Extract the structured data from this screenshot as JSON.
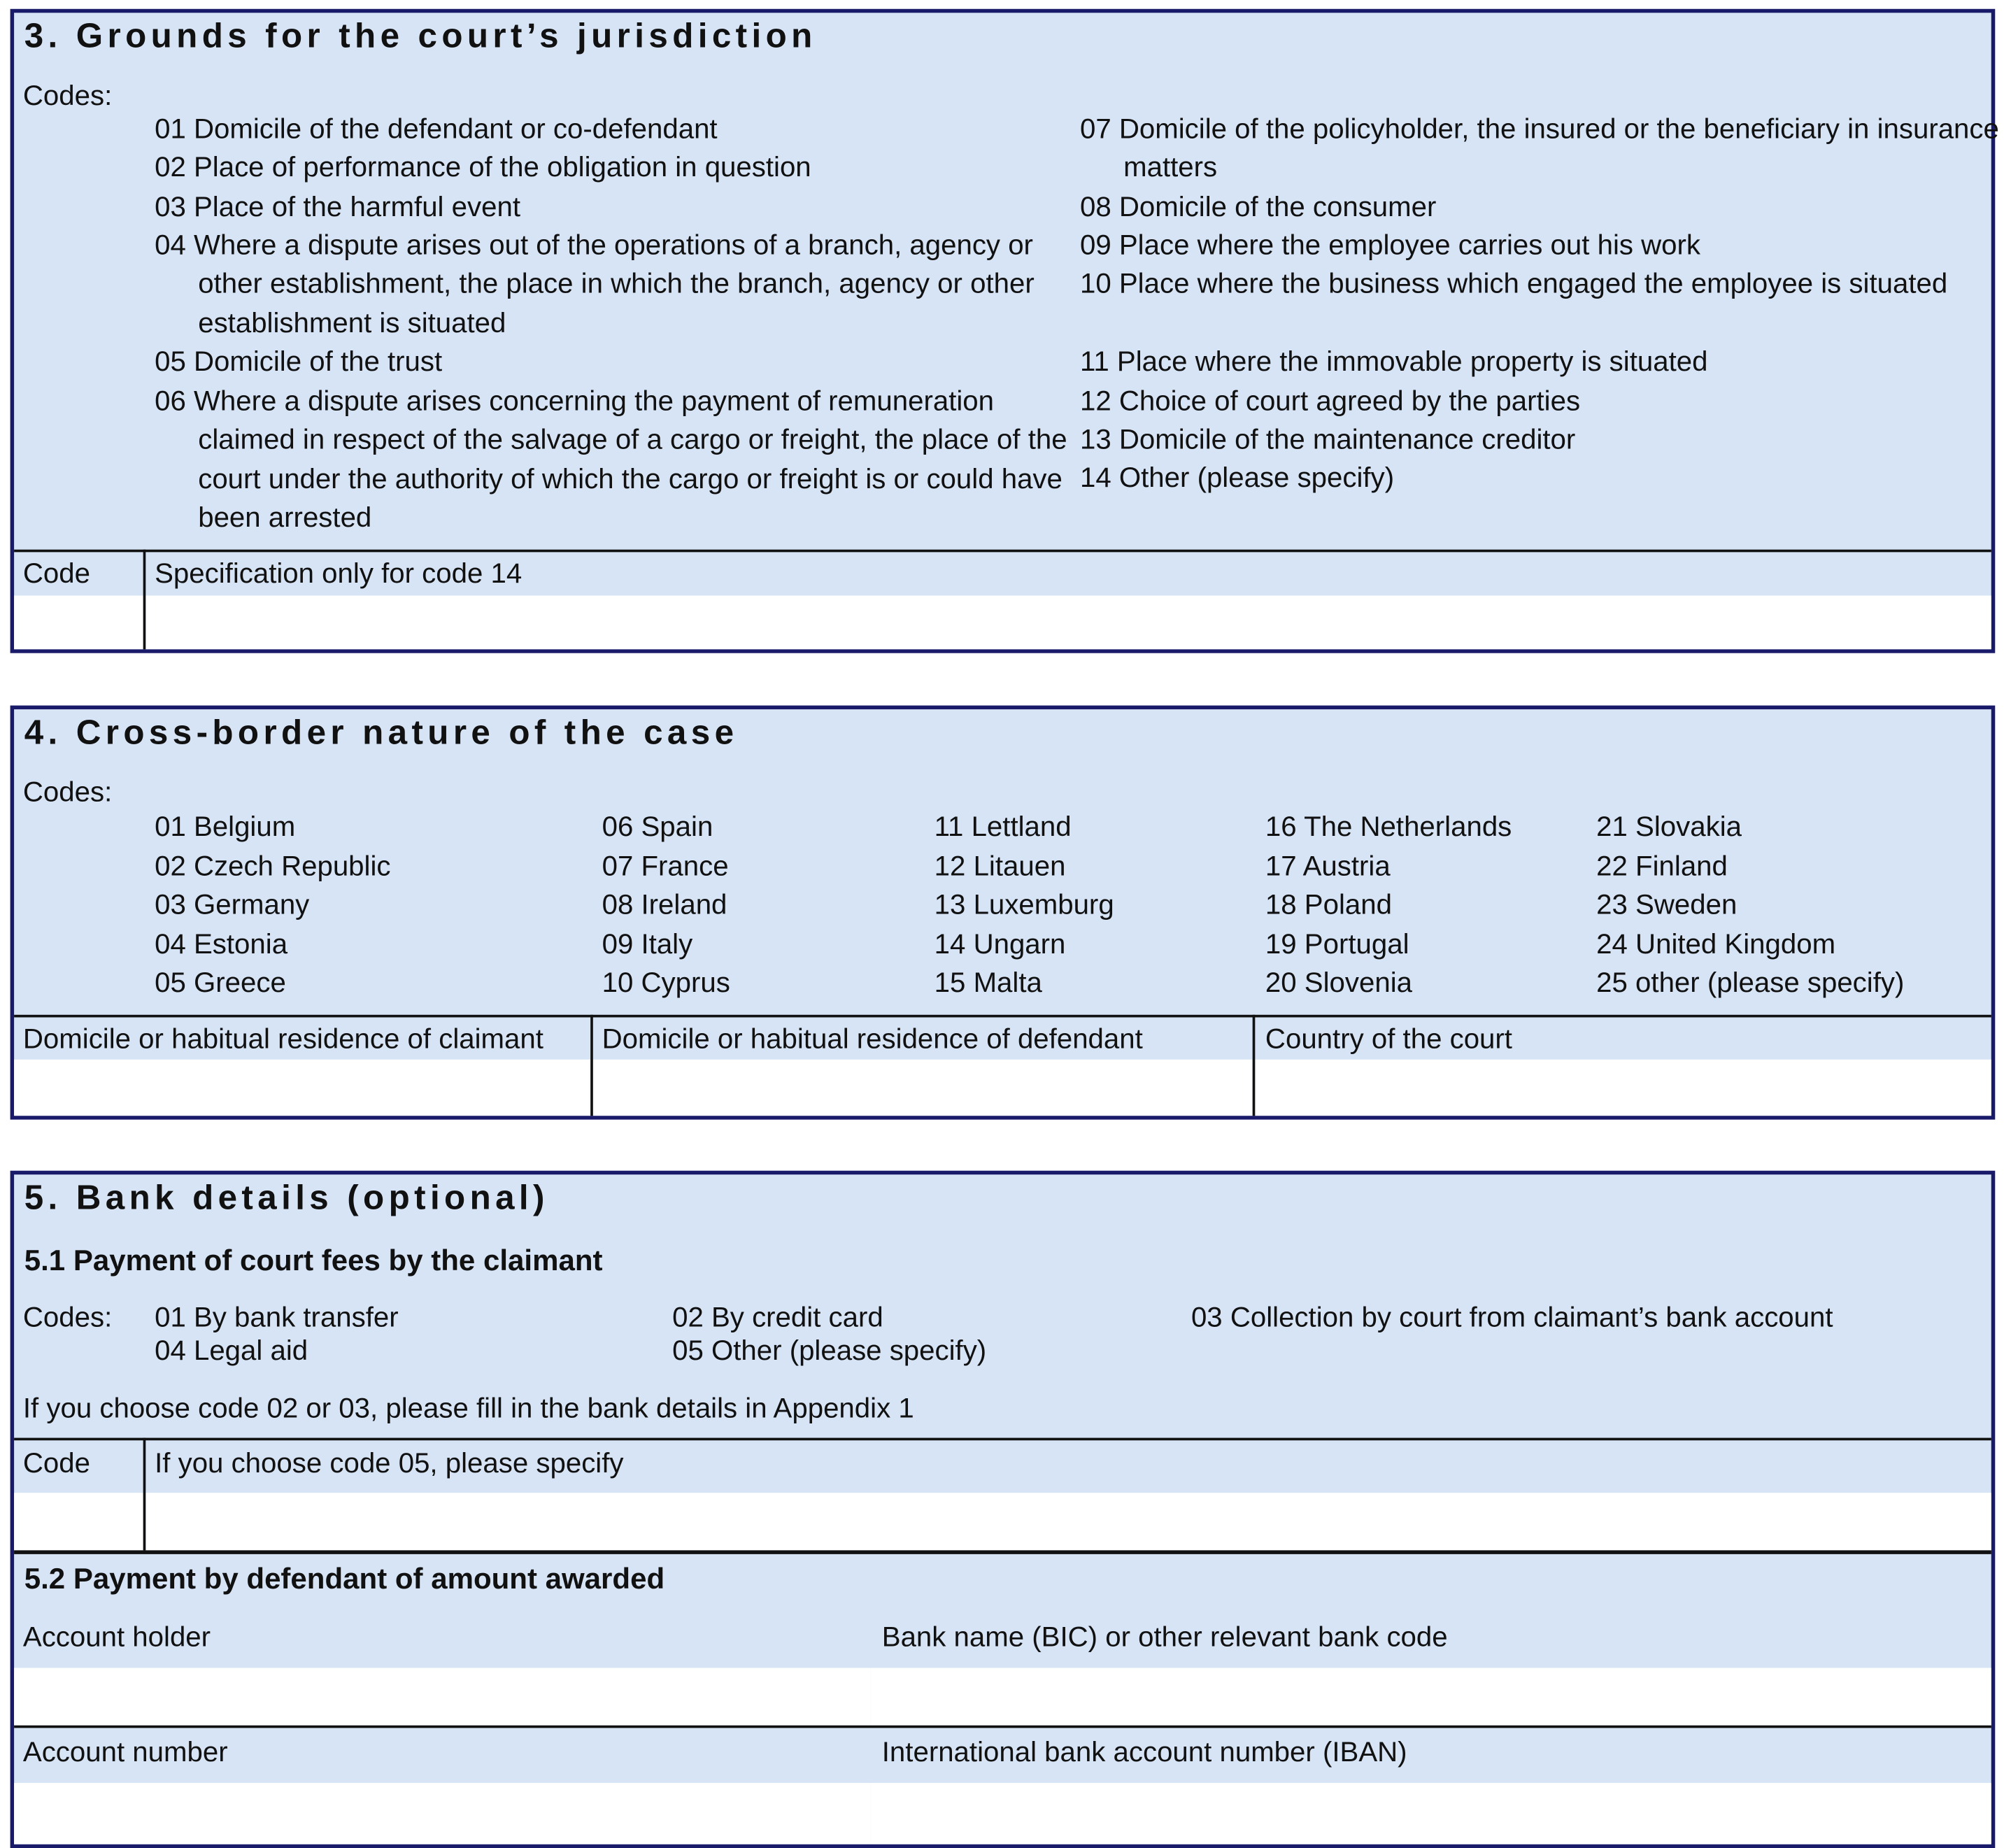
{
  "colors": {
    "background": "#d6e4f5",
    "border": "#1a1a6a",
    "field": "#ffffff"
  },
  "section3": {
    "title": "3. Grounds for the court’s jurisdiction",
    "codes_label": "Codes:",
    "left_codes": [
      "01 Domicile of the defendant or co-defendant",
      "02 Place of performance of the obligation in question",
      "03 Place of the harmful event",
      "04 Where a dispute arises out of the operations of a branch, agency or other establishment, the place in which the branch, agency or other establishment is situated",
      "05 Domicile of the trust",
      "06 Where a dispute arises concerning the payment of remuneration claimed in respect of the salvage of a cargo or freight, the place of the court under the authority of which the cargo or freight is or could have been arrested"
    ],
    "right_codes": [
      "07 Domicile of the policyholder, the insured or the beneficiary in insurance matters",
      "08 Domicile of the consumer",
      "09 Place where the employee carries out his work",
      "10 Place where the business which engaged the employee is situated",
      "11 Place where the immovable property is situated",
      "12 Choice of court agreed by the parties",
      "13 Domicile of the maintenance creditor",
      "14 Other (please specify)"
    ],
    "code_label": "Code",
    "spec_label": "Specification only for code 14"
  },
  "section4": {
    "title": "4. Cross-border nature of the case",
    "codes_label": "Codes:",
    "columns": [
      [
        "01 Belgium",
        "02 Czech Republic",
        "03 Germany",
        "04 Estonia",
        "05 Greece"
      ],
      [
        "06 Spain",
        "07 France",
        "08 Ireland",
        "09 Italy",
        "10 Cyprus"
      ],
      [
        "11 Lettland",
        "12 Litauen",
        "13 Luxemburg",
        "14 Ungarn",
        "15 Malta"
      ],
      [
        "16 The Netherlands",
        "17 Austria",
        "18 Poland",
        "19 Portugal",
        "20 Slovenia"
      ],
      [
        "21 Slovakia",
        "22 Finland",
        "23 Sweden",
        "24 United Kingdom",
        "25 other (please specify)"
      ]
    ],
    "claimant_label": "Domicile or habitual residence of claimant",
    "defendant_label": "Domicile or habitual residence of defendant",
    "court_label": "Country of the court"
  },
  "section5": {
    "title": "5. Bank details (optional)",
    "s51_title": "5.1 Payment of court fees by the claimant",
    "codes_label": "Codes:",
    "codes": [
      "01 By bank transfer",
      "02 By credit card",
      "03 Collection by court from claimant’s bank account",
      "04 Legal aid",
      "05 Other (please specify)"
    ],
    "note": "If you choose code 02 or 03, please fill in the bank details in Appendix 1",
    "code_label": "Code",
    "spec_label": "If you choose code 05, please specify",
    "s52_title": "5.2 Payment by defendant of amount awarded",
    "account_holder_label": "Account holder",
    "bank_name_label": "Bank name (BIC) or other relevant bank code",
    "account_number_label": "Account number",
    "iban_label": "International bank account number (IBAN)"
  }
}
